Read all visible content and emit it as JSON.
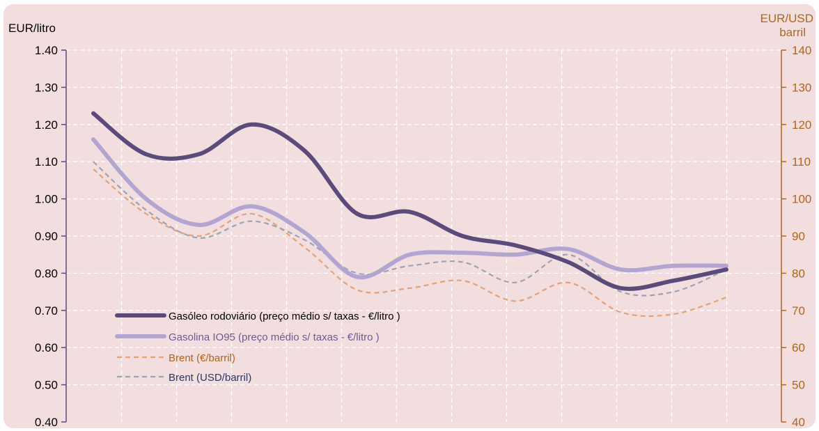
{
  "chart_data": {
    "type": "line",
    "background": "#f2dede",
    "x_count": 13,
    "left_axis": {
      "label": "EUR/litro",
      "min": 0.4,
      "max": 1.4,
      "step": 0.1,
      "ticks": [
        "0.40",
        "0.50",
        "0.60",
        "0.70",
        "0.80",
        "0.90",
        "1.00",
        "1.10",
        "1.20",
        "1.30",
        "1.40"
      ],
      "color": "#5b4b7a",
      "label_color": "#000000"
    },
    "right_axis": {
      "label_line1": "EUR/USD",
      "label_line2": "barril",
      "min": 40,
      "max": 140,
      "step": 10,
      "ticks": [
        "40",
        "50",
        "60",
        "70",
        "80",
        "90",
        "100",
        "110",
        "120",
        "130",
        "140"
      ],
      "color": "#b0651c"
    },
    "grid": {
      "vertical": true,
      "horizontal": true,
      "style": "dashed",
      "color": "#ffffff"
    },
    "legend_position": "bottom-left",
    "series": [
      {
        "name": "Gasóleo rodoviário (preço médio s/ taxas - €/litro )",
        "axis": "left",
        "style": "solid-thick",
        "color": "#5b4b7a",
        "label_color": "#000000",
        "values": [
          1.23,
          1.12,
          1.12,
          1.2,
          1.13,
          0.96,
          0.965,
          0.9,
          0.875,
          0.83,
          0.76,
          0.78,
          0.81
        ]
      },
      {
        "name": "Gasolina IO95 (preço médio s/ taxas - €/litro )",
        "axis": "left",
        "style": "solid-thick",
        "color": "#b3a5d1",
        "label_color": "#6b5b95",
        "values": [
          1.16,
          1.0,
          0.93,
          0.98,
          0.91,
          0.79,
          0.85,
          0.855,
          0.85,
          0.865,
          0.81,
          0.82,
          0.82
        ]
      },
      {
        "name": "Brent (€/barril)",
        "axis": "right",
        "style": "dashed",
        "color": "#e2a27a",
        "label_color": "#b0651c",
        "values": [
          108,
          96,
          90,
          96,
          87,
          75.5,
          76,
          78,
          72.5,
          77.5,
          69.5,
          69,
          73.5
        ]
      },
      {
        "name": "Brent (USD/barril)",
        "axis": "right",
        "style": "dashed",
        "color": "#9da3b4",
        "label_color": "#2a3766",
        "values": [
          110,
          97,
          89.5,
          94,
          89,
          80,
          82,
          83,
          77.5,
          85,
          75,
          75,
          81
        ]
      }
    ]
  }
}
